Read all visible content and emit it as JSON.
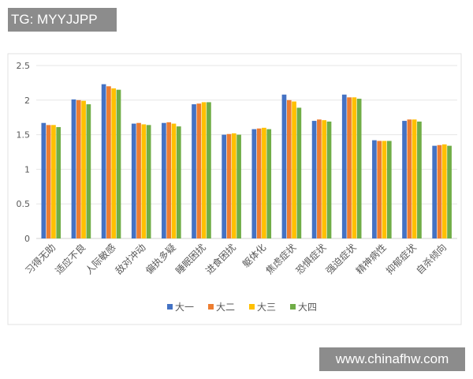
{
  "watermark_top": "TG: MYYJJPP",
  "watermark_bottom": "www.chinafhw.com",
  "chart_data": {
    "type": "bar",
    "categories": [
      "习得无助",
      "适应不良",
      "人际敏感",
      "敌对冲动",
      "偏执多疑",
      "睡眠困扰",
      "进食困扰",
      "躯体化",
      "焦虑症状",
      "恐惧症状",
      "强迫症状",
      "精神病性",
      "抑郁症状",
      "自杀倾向"
    ],
    "series": [
      {
        "name": "大一",
        "color": "#4472C4",
        "values": [
          1.67,
          2.01,
          2.23,
          1.66,
          1.67,
          1.94,
          1.5,
          1.58,
          2.08,
          1.7,
          2.08,
          1.42,
          1.7,
          1.34
        ]
      },
      {
        "name": "大二",
        "color": "#ED7D31",
        "values": [
          1.64,
          2.0,
          2.2,
          1.67,
          1.68,
          1.95,
          1.51,
          1.59,
          2.0,
          1.72,
          2.04,
          1.41,
          1.72,
          1.35
        ]
      },
      {
        "name": "大三",
        "color": "#FFC000",
        "values": [
          1.64,
          1.99,
          2.17,
          1.65,
          1.66,
          1.97,
          1.52,
          1.6,
          1.98,
          1.71,
          2.04,
          1.41,
          1.72,
          1.36
        ]
      },
      {
        "name": "大四",
        "color": "#70AD47",
        "values": [
          1.61,
          1.94,
          2.15,
          1.64,
          1.62,
          1.97,
          1.5,
          1.58,
          1.89,
          1.69,
          2.02,
          1.41,
          1.69,
          1.34
        ]
      }
    ],
    "yticks": [
      "0",
      "0.5",
      "1",
      "1.5",
      "2",
      "2.5"
    ],
    "ylim": [
      0,
      2.5
    ],
    "grid": true,
    "legend": "bottom"
  }
}
